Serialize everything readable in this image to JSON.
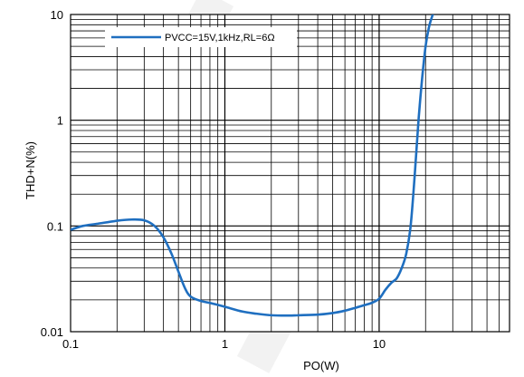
{
  "chart_data": {
    "type": "line",
    "title": "",
    "xlabel": "PO(W)",
    "ylabel": "THD+N(%)",
    "xscale": "log",
    "yscale": "log",
    "xlim": [
      0.1,
      70
    ],
    "ylim": [
      0.01,
      10
    ],
    "xticks": [
      "0.1",
      "1",
      "10"
    ],
    "yticks": [
      "0.01",
      "0.1",
      "1",
      "10"
    ],
    "grid": true,
    "legend_position": "top-left",
    "colors": {
      "series": "#1f6fc0",
      "grid": "#000000",
      "background": "#ffffff"
    },
    "series": [
      {
        "name": "PVCC=15V,1kHz,RL=6Ω",
        "x": [
          0.1,
          0.12,
          0.15,
          0.2,
          0.25,
          0.3,
          0.35,
          0.4,
          0.45,
          0.5,
          0.55,
          0.6,
          0.7,
          0.8,
          1,
          1.3,
          1.6,
          2,
          2.5,
          3,
          4,
          5,
          6,
          7,
          8,
          9,
          10,
          11,
          12,
          13,
          14,
          15,
          16,
          17,
          18,
          19,
          20,
          21,
          22,
          23
        ],
        "y": [
          0.092,
          0.1,
          0.105,
          0.112,
          0.115,
          0.113,
          0.1,
          0.078,
          0.055,
          0.037,
          0.026,
          0.0215,
          0.0195,
          0.0187,
          0.0172,
          0.0155,
          0.0148,
          0.0143,
          0.0142,
          0.0143,
          0.0145,
          0.015,
          0.0158,
          0.0168,
          0.0178,
          0.0188,
          0.0205,
          0.025,
          0.029,
          0.032,
          0.04,
          0.055,
          0.1,
          0.3,
          1.0,
          2.5,
          5.0,
          7.5,
          9.5,
          11.0
        ]
      }
    ]
  }
}
